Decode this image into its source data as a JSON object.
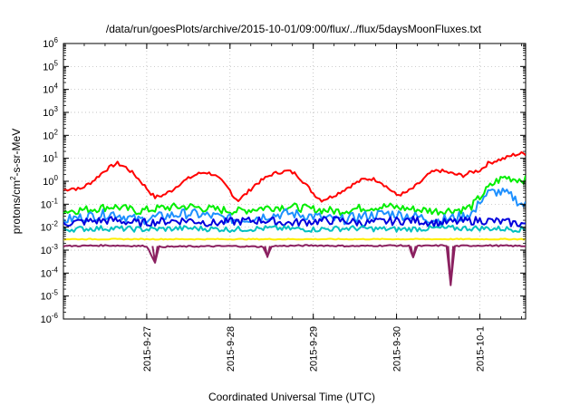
{
  "chart_data": {
    "type": "line",
    "title": "/data/run/goesPlots/archive/2015-10-01/09:00/flux/../flux/5daysMoonFluxes.txt",
    "xlabel": "Coordinated Universal Time (UTC)",
    "ylabel": {
      "pre": "protons/cm",
      "sup": "2",
      "post": "-s-sr-MeV"
    },
    "yscale": "log",
    "ylim": [
      1e-06,
      1000000.0
    ],
    "xlim": [
      0,
      5.55
    ],
    "grid": true,
    "y_ticks": [
      {
        "exp": "-6"
      },
      {
        "exp": "-5"
      },
      {
        "exp": "-4"
      },
      {
        "exp": "-3"
      },
      {
        "exp": "-2"
      },
      {
        "exp": "-1"
      },
      {
        "exp": "0"
      },
      {
        "exp": "1"
      },
      {
        "exp": "2"
      },
      {
        "exp": "3"
      },
      {
        "exp": "4"
      },
      {
        "exp": "5"
      },
      {
        "exp": "6"
      }
    ],
    "y_tick_base": "10",
    "x_ticks": [
      {
        "x": 1.0,
        "label": "2015-9-27"
      },
      {
        "x": 2.0,
        "label": "2015-9-28"
      },
      {
        "x": 3.0,
        "label": "2015-9-29"
      },
      {
        "x": 4.0,
        "label": "2015-9-30"
      },
      {
        "x": 5.0,
        "label": "2015-10-1"
      }
    ],
    "series": [
      {
        "color": "#ff0000",
        "points": [
          [
            0,
            0.4
          ],
          [
            0.1,
            0.5
          ],
          [
            0.2,
            0.45
          ],
          [
            0.35,
            1.0
          ],
          [
            0.5,
            3
          ],
          [
            0.6,
            5
          ],
          [
            0.65,
            6
          ],
          [
            0.75,
            4
          ],
          [
            0.85,
            2
          ],
          [
            0.95,
            0.8
          ],
          [
            1.05,
            0.3
          ],
          [
            1.1,
            0.2
          ],
          [
            1.2,
            0.25
          ],
          [
            1.3,
            0.4
          ],
          [
            1.4,
            0.8
          ],
          [
            1.5,
            1.3
          ],
          [
            1.6,
            2
          ],
          [
            1.7,
            2.5
          ],
          [
            1.8,
            2
          ],
          [
            1.9,
            1.0
          ],
          [
            2.0,
            0.4
          ],
          [
            2.05,
            0.2
          ],
          [
            2.1,
            0.15
          ],
          [
            2.2,
            0.3
          ],
          [
            2.3,
            0.7
          ],
          [
            2.4,
            1.2
          ],
          [
            2.5,
            2
          ],
          [
            2.6,
            2.5
          ],
          [
            2.7,
            2.8
          ],
          [
            2.8,
            2.0
          ],
          [
            2.9,
            0.8
          ],
          [
            3.0,
            0.3
          ],
          [
            3.05,
            0.2
          ],
          [
            3.1,
            0.15
          ],
          [
            3.2,
            0.2
          ],
          [
            3.3,
            0.3
          ],
          [
            3.4,
            0.5
          ],
          [
            3.5,
            0.8
          ],
          [
            3.6,
            1.2
          ],
          [
            3.7,
            1.3
          ],
          [
            3.8,
            1.0
          ],
          [
            3.9,
            0.5
          ],
          [
            4.0,
            0.25
          ],
          [
            4.1,
            0.3
          ],
          [
            4.2,
            0.5
          ],
          [
            4.3,
            1.0
          ],
          [
            4.4,
            2.2
          ],
          [
            4.5,
            3
          ],
          [
            4.6,
            2.5
          ],
          [
            4.7,
            2.0
          ],
          [
            4.8,
            1.8
          ],
          [
            4.9,
            2.5
          ],
          [
            5.0,
            3
          ],
          [
            5.1,
            6
          ],
          [
            5.2,
            8
          ],
          [
            5.3,
            10
          ],
          [
            5.4,
            14
          ],
          [
            5.5,
            16
          ],
          [
            5.55,
            16
          ]
        ]
      },
      {
        "color": "#00ee00",
        "points": [
          [
            0,
            0.05
          ],
          [
            0.3,
            0.06
          ],
          [
            0.6,
            0.08
          ],
          [
            0.9,
            0.05
          ],
          [
            1.2,
            0.07
          ],
          [
            1.5,
            0.08
          ],
          [
            1.8,
            0.06
          ],
          [
            2.1,
            0.05
          ],
          [
            2.4,
            0.07
          ],
          [
            2.7,
            0.08
          ],
          [
            3.0,
            0.06
          ],
          [
            3.3,
            0.05
          ],
          [
            3.6,
            0.07
          ],
          [
            3.9,
            0.08
          ],
          [
            4.2,
            0.06
          ],
          [
            4.5,
            0.05
          ],
          [
            4.8,
            0.06
          ],
          [
            4.9,
            0.08
          ],
          [
            5.0,
            0.2
          ],
          [
            5.1,
            0.5
          ],
          [
            5.2,
            1.0
          ],
          [
            5.3,
            1.5
          ],
          [
            5.4,
            1.3
          ],
          [
            5.5,
            1.2
          ],
          [
            5.55,
            1.2
          ]
        ]
      },
      {
        "color": "#1e90ff",
        "points": [
          [
            0,
            0.02
          ],
          [
            0.3,
            0.03
          ],
          [
            0.6,
            0.04
          ],
          [
            0.9,
            0.02
          ],
          [
            1.2,
            0.03
          ],
          [
            1.5,
            0.04
          ],
          [
            1.8,
            0.03
          ],
          [
            2.1,
            0.02
          ],
          [
            2.4,
            0.03
          ],
          [
            2.7,
            0.04
          ],
          [
            3.0,
            0.03
          ],
          [
            3.3,
            0.02
          ],
          [
            3.6,
            0.03
          ],
          [
            3.9,
            0.04
          ],
          [
            4.2,
            0.03
          ],
          [
            4.5,
            0.02
          ],
          [
            4.8,
            0.03
          ],
          [
            4.95,
            0.05
          ],
          [
            5.0,
            0.15
          ],
          [
            5.1,
            0.3
          ],
          [
            5.2,
            0.35
          ],
          [
            5.3,
            0.3
          ],
          [
            5.4,
            0.2
          ],
          [
            5.5,
            0.1
          ],
          [
            5.55,
            0.09
          ]
        ]
      },
      {
        "color": "#0000dd",
        "points": [
          [
            0,
            0.015
          ],
          [
            0.3,
            0.018
          ],
          [
            0.6,
            0.02
          ],
          [
            0.9,
            0.015
          ],
          [
            1.2,
            0.018
          ],
          [
            1.5,
            0.02
          ],
          [
            1.8,
            0.015
          ],
          [
            2.1,
            0.018
          ],
          [
            2.4,
            0.02
          ],
          [
            2.7,
            0.015
          ],
          [
            3.0,
            0.018
          ],
          [
            3.3,
            0.02
          ],
          [
            3.6,
            0.015
          ],
          [
            3.9,
            0.018
          ],
          [
            4.2,
            0.02
          ],
          [
            4.5,
            0.015
          ],
          [
            4.8,
            0.018
          ],
          [
            5.0,
            0.02
          ],
          [
            5.2,
            0.018
          ],
          [
            5.4,
            0.015
          ],
          [
            5.55,
            0.014
          ]
        ]
      },
      {
        "color": "#00c0c0",
        "points": [
          [
            0,
            0.008
          ],
          [
            0.5,
            0.009
          ],
          [
            1.0,
            0.008
          ],
          [
            1.5,
            0.009
          ],
          [
            2.0,
            0.008
          ],
          [
            2.5,
            0.009
          ],
          [
            3.0,
            0.008
          ],
          [
            3.5,
            0.009
          ],
          [
            4.0,
            0.008
          ],
          [
            4.5,
            0.009
          ],
          [
            5.0,
            0.009
          ],
          [
            5.55,
            0.008
          ]
        ]
      },
      {
        "color": "#ffee00",
        "points": [
          [
            0,
            0.003
          ],
          [
            1.0,
            0.003
          ],
          [
            2.0,
            0.003
          ],
          [
            3.0,
            0.003
          ],
          [
            4.0,
            0.003
          ],
          [
            5.0,
            0.003
          ],
          [
            5.55,
            0.003
          ]
        ]
      },
      {
        "color": "#8b2060",
        "points": [
          [
            0,
            0.0015
          ],
          [
            0.5,
            0.0016
          ],
          [
            1.0,
            0.0015
          ],
          [
            1.1,
            0.0003
          ],
          [
            1.15,
            0.0014
          ],
          [
            2.0,
            0.0015
          ],
          [
            2.4,
            0.0014
          ],
          [
            2.45,
            0.0005
          ],
          [
            2.5,
            0.0015
          ],
          [
            3.0,
            0.0016
          ],
          [
            3.5,
            0.0015
          ],
          [
            4.0,
            0.0016
          ],
          [
            4.15,
            0.0015
          ],
          [
            4.2,
            0.0005
          ],
          [
            4.25,
            0.0015
          ],
          [
            4.6,
            0.0016
          ],
          [
            4.65,
            3e-05
          ],
          [
            4.7,
            0.0015
          ],
          [
            5.0,
            0.0016
          ],
          [
            5.55,
            0.0015
          ]
        ]
      }
    ]
  }
}
